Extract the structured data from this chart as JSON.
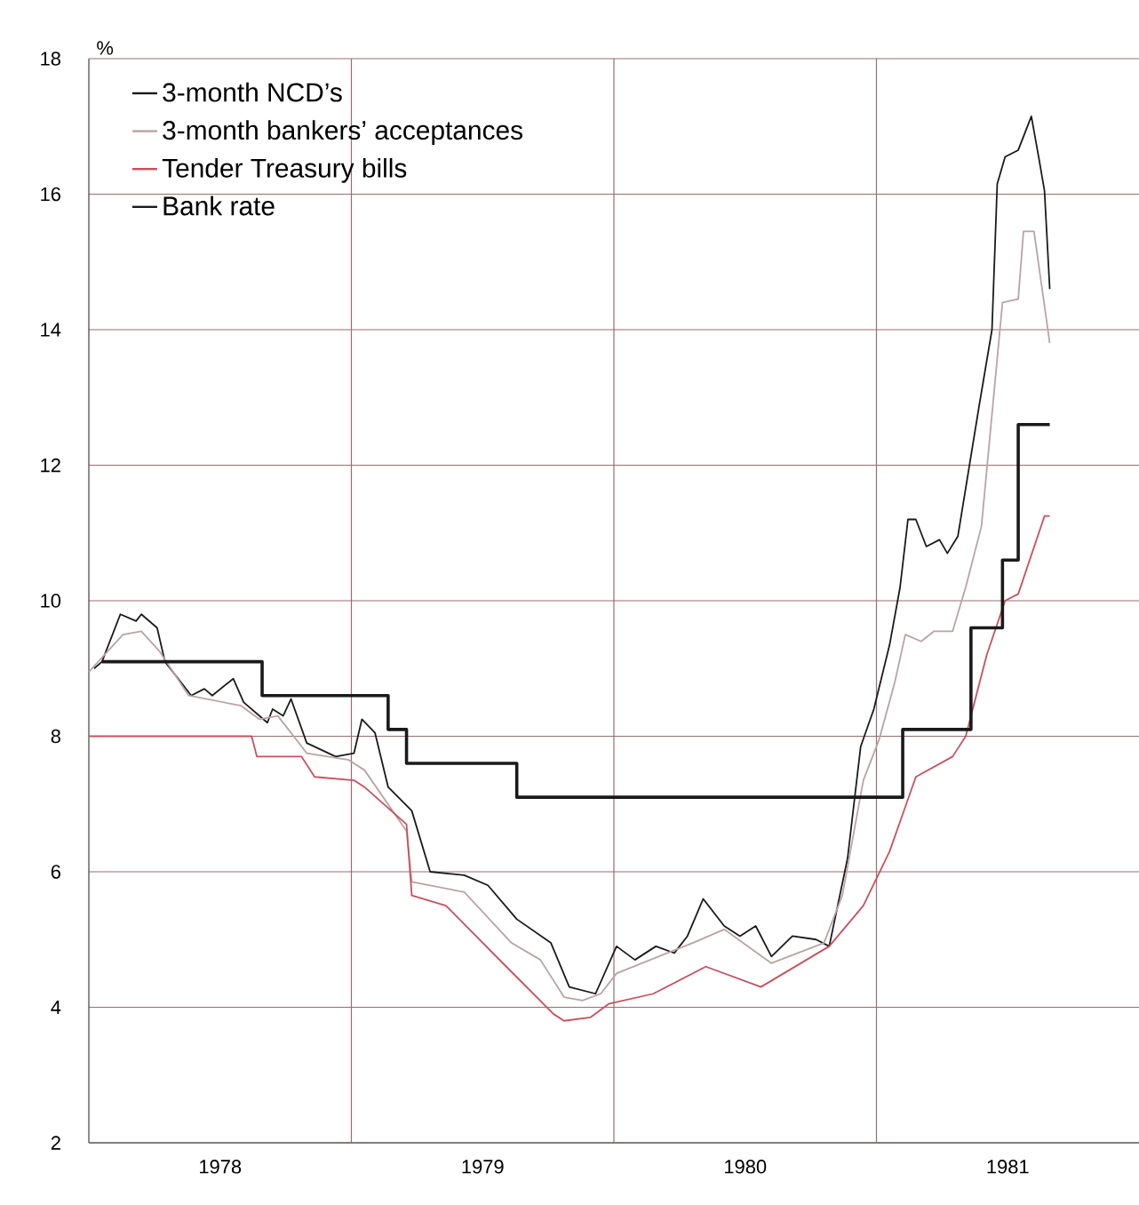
{
  "chart_data": {
    "type": "line",
    "ylabel": "%",
    "xlim": [
      1978,
      1982
    ],
    "ylim": [
      2,
      18
    ],
    "xticks": [
      {
        "value": 1978.5,
        "label": "1978"
      },
      {
        "value": 1979,
        "label": null
      },
      {
        "value": 1979.5,
        "label": "1979"
      },
      {
        "value": 1980,
        "label": null
      },
      {
        "value": 1980.5,
        "label": "1980"
      },
      {
        "value": 1981,
        "label": null
      },
      {
        "value": 1981.5,
        "label": "1981"
      }
    ],
    "yticks": [
      2,
      4,
      6,
      8,
      10,
      12,
      14,
      16,
      18
    ],
    "grid": true,
    "legend": "top left",
    "series": [
      {
        "name": "3-month NCD’s",
        "color": "#1a1a1a",
        "x": [
          1978.02,
          1978.05,
          1978.12,
          1978.18,
          1978.2,
          1978.26,
          1978.29,
          1978.39,
          1978.44,
          1978.47,
          1978.55,
          1978.59,
          1978.68,
          1978.7,
          1978.74,
          1978.77,
          1978.83,
          1978.94,
          1979.01,
          1979.04,
          1979.09,
          1979.14,
          1979.23,
          1979.3,
          1979.43,
          1979.52,
          1979.63,
          1979.76,
          1979.83,
          1979.93,
          1980.01,
          1980.08,
          1980.16,
          1980.23,
          1980.28,
          1980.34,
          1980.42,
          1980.48,
          1980.54,
          1980.6,
          1980.68,
          1980.77,
          1980.82,
          1980.89,
          1980.94,
          1980.99,
          1981.05,
          1981.09,
          1981.12,
          1981.15,
          1981.19,
          1981.24,
          1981.27,
          1981.31,
          1981.39,
          1981.44,
          1981.46,
          1981.49,
          1981.54,
          1981.59,
          1981.62,
          1981.64,
          1981.66
        ],
        "values": [
          9.0,
          9.1,
          9.8,
          9.7,
          9.8,
          9.6,
          9.1,
          8.6,
          8.7,
          8.6,
          8.85,
          8.5,
          8.2,
          8.4,
          8.3,
          8.55,
          7.9,
          7.7,
          7.75,
          8.25,
          8.05,
          7.25,
          6.9,
          6.0,
          5.95,
          5.8,
          5.3,
          4.95,
          4.3,
          4.2,
          4.9,
          4.7,
          4.9,
          4.8,
          5.05,
          5.6,
          5.2,
          5.05,
          5.2,
          4.75,
          5.05,
          5.0,
          4.9,
          6.2,
          7.85,
          8.4,
          9.35,
          10.2,
          11.2,
          11.2,
          10.8,
          10.9,
          10.7,
          10.95,
          12.85,
          14.0,
          16.15,
          16.55,
          16.65,
          17.15,
          16.5,
          16.05,
          14.6
        ]
      },
      {
        "name": "3-month bankers’ acceptances",
        "color": "#b9a3a5",
        "x": [
          1978.0,
          1978.13,
          1978.2,
          1978.27,
          1978.38,
          1978.58,
          1978.65,
          1978.72,
          1978.83,
          1978.99,
          1979.05,
          1979.21,
          1979.23,
          1979.43,
          1979.61,
          1979.72,
          1979.81,
          1979.88,
          1979.95,
          1980.01,
          1980.3,
          1980.42,
          1980.6,
          1980.8,
          1980.87,
          1980.95,
          1981.01,
          1981.07,
          1981.11,
          1981.17,
          1981.22,
          1981.29,
          1981.34,
          1981.4,
          1981.48,
          1981.54,
          1981.56,
          1981.6,
          1981.66
        ],
        "values": [
          8.95,
          9.5,
          9.55,
          9.25,
          8.6,
          8.45,
          8.25,
          8.3,
          7.75,
          7.65,
          7.5,
          6.6,
          5.85,
          5.7,
          4.95,
          4.7,
          4.15,
          4.1,
          4.2,
          4.5,
          4.95,
          5.15,
          4.65,
          4.95,
          5.65,
          7.35,
          7.95,
          8.8,
          9.5,
          9.4,
          9.55,
          9.55,
          10.2,
          11.1,
          14.4,
          14.45,
          15.45,
          15.45,
          13.8
        ]
      },
      {
        "name": "Tender Treasury bills",
        "color": "#c8505c",
        "x": [
          1978.0,
          1978.62,
          1978.64,
          1978.81,
          1978.86,
          1979.01,
          1979.05,
          1979.21,
          1979.23,
          1979.36,
          1979.59,
          1979.77,
          1979.81,
          1979.91,
          1979.98,
          1980.15,
          1980.35,
          1980.56,
          1980.82,
          1980.95,
          1981.05,
          1981.15,
          1981.29,
          1981.34,
          1981.42,
          1981.49,
          1981.54,
          1981.64,
          1981.66
        ],
        "values": [
          8.0,
          8.0,
          7.7,
          7.7,
          7.4,
          7.35,
          7.25,
          6.7,
          5.65,
          5.5,
          4.6,
          3.9,
          3.8,
          3.85,
          4.05,
          4.2,
          4.6,
          4.3,
          4.9,
          5.5,
          6.3,
          7.4,
          7.7,
          8.0,
          9.2,
          10.0,
          10.1,
          11.25,
          11.25
        ]
      },
      {
        "name": "Bank rate",
        "type": "step",
        "color": "#1a1a1a",
        "x": [
          1978.05,
          1978.66,
          1979.14,
          1979.21,
          1979.63,
          1981.1,
          1981.36,
          1981.48,
          1981.54,
          1981.66
        ],
        "values": [
          9.1,
          8.6,
          8.1,
          7.6,
          7.1,
          8.1,
          9.6,
          10.6,
          12.6,
          12.6
        ]
      }
    ]
  }
}
